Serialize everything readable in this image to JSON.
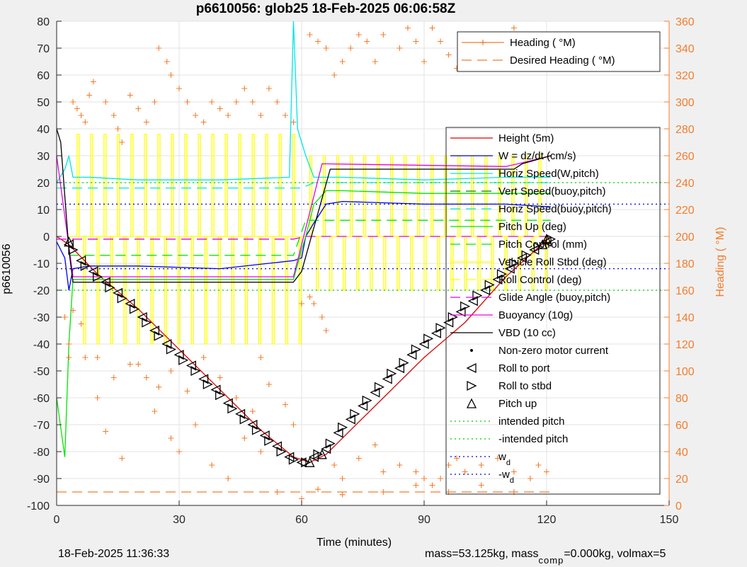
{
  "footer": {
    "date": "18-Feb-2025 11:36:33",
    "mass_prefix": "mass=53.125kg, mass",
    "mass_sub": "comp",
    "mass_suffix": "=0.000kg, volmax=5"
  },
  "chart_data": {
    "type": "line",
    "title": "p6610056: glob25 18-Feb-2025 06:06:58Z",
    "xlabel": "Time (minutes)",
    "ylabel": "p6610056",
    "y2label": "Heading ( °M)",
    "xlim": [
      0,
      150
    ],
    "ylim": [
      -100,
      80
    ],
    "y2lim": [
      0,
      360
    ],
    "xticks": [
      0,
      30,
      60,
      90,
      120,
      150
    ],
    "yticks": [
      -100,
      -90,
      -80,
      -70,
      -60,
      -50,
      -40,
      -30,
      -20,
      -10,
      0,
      10,
      20,
      30,
      40,
      50,
      60,
      70,
      80
    ],
    "y2ticks": [
      0,
      20,
      40,
      60,
      80,
      100,
      120,
      140,
      160,
      180,
      200,
      220,
      240,
      260,
      280,
      300,
      320,
      340,
      360
    ],
    "grid": true,
    "legend_heading": [
      {
        "label": "Heading ( °M)",
        "color": "#f47c2c",
        "style": "plus"
      },
      {
        "label": "Desired Heading ( °M)",
        "color": "#f47c2c",
        "style": "dash"
      }
    ],
    "legend_main": [
      {
        "label": "Height (5m)",
        "color": "#e00000",
        "style": "solid"
      },
      {
        "label": "W = dz/dt (cm/s)",
        "color": "#0000e6",
        "style": "solid"
      },
      {
        "label": "Horiz Speed(W,pitch)",
        "color": "#00e6e6",
        "style": "solid"
      },
      {
        "label": "Vert Speed(buoy,pitch)",
        "color": "#008000",
        "style": "dash"
      },
      {
        "label": "Horiz Speed(buoy,pitch)",
        "color": "#00e6e6",
        "style": "dash"
      },
      {
        "label": "Pitch Up (deg)",
        "color": "#00e600",
        "style": "solid"
      },
      {
        "label": "Pitch Control (mm)",
        "color": "#00e600",
        "style": "dash"
      },
      {
        "label": "Vehicle Roll Stbd (deg)",
        "color": "#ffff00",
        "style": "solid"
      },
      {
        "label": "Roll Control (deg)",
        "color": "#ffff00",
        "style": "dash"
      },
      {
        "label": "Glide Angle (buoy,pitch)",
        "color": "#e600e6",
        "style": "dash"
      },
      {
        "label": "Buoyancy (10g)",
        "color": "#e600e6",
        "style": "solid"
      },
      {
        "label": "VBD (10 cc)",
        "color": "#000000",
        "style": "solid"
      },
      {
        "label": "Non-zero motor current",
        "color": "#000000",
        "style": "dot"
      },
      {
        "label": "Roll to port",
        "color": "#000000",
        "style": "tri-left"
      },
      {
        "label": "Roll to stbd",
        "color": "#000000",
        "style": "tri-right"
      },
      {
        "label": "Pitch up",
        "color": "#000000",
        "style": "tri-up"
      },
      {
        "label": "intended pitch",
        "color": "#00d000",
        "style": "dotted"
      },
      {
        "label": "-intended pitch",
        "color": "#00d000",
        "style": "dotted"
      },
      {
        "label": "w",
        "sub": "d",
        "color": "#0000e6",
        "style": "dotted"
      },
      {
        "label": "-w",
        "sub": "d",
        "color": "#0000e6",
        "style": "dotted"
      }
    ],
    "series": [
      {
        "name": "Height (5m)",
        "color": "#e00000",
        "x": [
          0,
          3,
          10,
          20,
          30,
          40,
          50,
          58,
          62,
          66,
          72,
          80,
          90,
          100,
          110,
          121
        ],
        "y": [
          0,
          -3,
          -14,
          -27,
          -42,
          -57,
          -72,
          -82,
          -84,
          -81,
          -72,
          -60,
          -45,
          -32,
          -15,
          0
        ]
      },
      {
        "name": "W = dz/dt (cm/s)",
        "color": "#0000e6",
        "x": [
          0,
          2,
          3,
          4,
          8,
          20,
          40,
          58,
          60,
          61,
          63,
          66,
          70,
          90,
          110,
          121
        ],
        "y": [
          -2,
          -8,
          -20,
          -12,
          -11,
          -11,
          -12,
          -9,
          -8,
          0,
          5,
          12,
          13,
          12,
          12,
          11
        ]
      },
      {
        "name": "Horiz Speed(W,pitch)",
        "color": "#00e6e6",
        "x": [
          0,
          2,
          3,
          4,
          8,
          20,
          40,
          57,
          58,
          59,
          61,
          63,
          66,
          70,
          90,
          110,
          121
        ],
        "y": [
          20,
          25,
          30,
          22,
          22,
          21,
          21,
          22,
          80,
          40,
          30,
          22,
          22,
          22,
          21,
          22,
          22
        ]
      },
      {
        "name": "Horiz Speed(buoy,pitch)",
        "color": "#00e6e6",
        "x": [
          0,
          4,
          20,
          40,
          58,
          60,
          63,
          70,
          90,
          121
        ],
        "y": [
          18,
          18,
          18,
          18,
          18,
          18,
          20,
          20,
          20,
          20
        ]
      },
      {
        "name": "Pitch Up (deg)",
        "color": "#00e600",
        "x": [
          0,
          2,
          3,
          4,
          6,
          20,
          40,
          58,
          60,
          61,
          63,
          66,
          70,
          90,
          110,
          121
        ],
        "y": [
          -60,
          -82,
          -40,
          -16,
          -16,
          -16,
          -16,
          -16,
          -5,
          0,
          12,
          17,
          17,
          16,
          16,
          16
        ]
      },
      {
        "name": "Pitch Control (mm)",
        "color": "#00e600",
        "x": [
          3,
          58,
          61,
          121
        ],
        "y": [
          -7,
          -7,
          6,
          6
        ]
      },
      {
        "name": "Glide Angle (buoy,pitch)",
        "color": "#e600e6",
        "x": [
          0,
          20,
          40,
          58,
          61,
          90,
          121
        ],
        "y": [
          -1,
          -1,
          -1,
          -1,
          0,
          0,
          0
        ]
      },
      {
        "name": "Buoyancy (10g)",
        "color": "#e600e6",
        "x": [
          0,
          4,
          58,
          65,
          110,
          113,
          121
        ],
        "y": [
          30,
          -15,
          -15,
          27,
          26,
          27,
          30
        ]
      },
      {
        "name": "VBD (10 cc)",
        "color": "#000000",
        "x": [
          0,
          1,
          3,
          4,
          58,
          60,
          67,
          112,
          114,
          121
        ],
        "y": [
          40,
          35,
          -5,
          -17,
          -17,
          -13,
          25,
          25,
          27,
          30
        ]
      },
      {
        "name": "intended pitch",
        "color": "#00d000",
        "x": [
          0,
          150
        ],
        "y": [
          20,
          20
        ]
      },
      {
        "name": "-intended pitch",
        "color": "#00d000",
        "x": [
          0,
          150
        ],
        "y": [
          -20,
          -20
        ]
      },
      {
        "name": "w_d",
        "color": "#0000e6",
        "x": [
          0,
          150
        ],
        "y": [
          12,
          12
        ]
      },
      {
        "name": "-w_d",
        "color": "#0000e6",
        "x": [
          0,
          150
        ],
        "y": [
          -12,
          -12
        ]
      },
      {
        "name": "Desired Heading ( °M)",
        "color": "#f47c2c",
        "axis": "right",
        "x": [
          0,
          121
        ],
        "y": [
          10,
          10
        ]
      }
    ],
    "heading_points_deg": [
      [
        4,
        300
      ],
      [
        5,
        295
      ],
      [
        6,
        290
      ],
      [
        7,
        285
      ],
      [
        8,
        305
      ],
      [
        9,
        315
      ],
      [
        12,
        300
      ],
      [
        14,
        290
      ],
      [
        15,
        280
      ],
      [
        16,
        270
      ],
      [
        18,
        305
      ],
      [
        20,
        295
      ],
      [
        22,
        285
      ],
      [
        24,
        300
      ],
      [
        25,
        340
      ],
      [
        27,
        330
      ],
      [
        28,
        320
      ],
      [
        30,
        310
      ],
      [
        32,
        300
      ],
      [
        34,
        290
      ],
      [
        36,
        285
      ],
      [
        38,
        300
      ],
      [
        40,
        295
      ],
      [
        42,
        290
      ],
      [
        44,
        300
      ],
      [
        46,
        310
      ],
      [
        48,
        300
      ],
      [
        50,
        290
      ],
      [
        52,
        310
      ],
      [
        54,
        300
      ],
      [
        56,
        290
      ],
      [
        58,
        285
      ],
      [
        62,
        350
      ],
      [
        64,
        345
      ],
      [
        66,
        340
      ],
      [
        68,
        320
      ],
      [
        70,
        330
      ],
      [
        72,
        340
      ],
      [
        74,
        350
      ],
      [
        76,
        345
      ],
      [
        78,
        330
      ],
      [
        80,
        350
      ],
      [
        84,
        340
      ],
      [
        86,
        355
      ],
      [
        88,
        345
      ],
      [
        90,
        330
      ],
      [
        92,
        355
      ],
      [
        94,
        345
      ],
      [
        96,
        335
      ],
      [
        98,
        325
      ],
      [
        100,
        350
      ],
      [
        102,
        345
      ],
      [
        104,
        340
      ],
      [
        106,
        330
      ],
      [
        108,
        345
      ],
      [
        110,
        340
      ],
      [
        112,
        355
      ],
      [
        114,
        350
      ],
      [
        116,
        345
      ],
      [
        118,
        340
      ],
      [
        4,
        145
      ],
      [
        6,
        135
      ],
      [
        10,
        110
      ],
      [
        14,
        95
      ],
      [
        18,
        105
      ],
      [
        22,
        95
      ],
      [
        25,
        88
      ],
      [
        28,
        100
      ],
      [
        32,
        85
      ],
      [
        36,
        110
      ],
      [
        40,
        95
      ],
      [
        44,
        80
      ],
      [
        48,
        70
      ],
      [
        50,
        110
      ],
      [
        52,
        90
      ],
      [
        56,
        75
      ],
      [
        58,
        60
      ],
      [
        60,
        150
      ],
      [
        62,
        155
      ],
      [
        63,
        150
      ],
      [
        65,
        140
      ],
      [
        66,
        130
      ],
      [
        68,
        30
      ],
      [
        70,
        20
      ],
      [
        74,
        35
      ],
      [
        78,
        45
      ],
      [
        80,
        25
      ],
      [
        84,
        30
      ],
      [
        88,
        25
      ],
      [
        90,
        20
      ],
      [
        92,
        15
      ],
      [
        94,
        20
      ],
      [
        96,
        30
      ],
      [
        98,
        35
      ],
      [
        100,
        25
      ],
      [
        104,
        30
      ],
      [
        108,
        35
      ],
      [
        112,
        25
      ],
      [
        116,
        20
      ],
      [
        118,
        30
      ],
      [
        120,
        25
      ],
      [
        2,
        140
      ],
      [
        3,
        120
      ],
      [
        3,
        110
      ],
      [
        7,
        110
      ],
      [
        10,
        80
      ],
      [
        12,
        55
      ],
      [
        16,
        35
      ],
      [
        20,
        105
      ],
      [
        24,
        70
      ],
      [
        28,
        50
      ],
      [
        30,
        40
      ],
      [
        34,
        60
      ],
      [
        38,
        30
      ],
      [
        42,
        20
      ],
      [
        46,
        50
      ],
      [
        50,
        40
      ],
      [
        54,
        10
      ],
      [
        60,
        5
      ],
      [
        64,
        12
      ],
      [
        70,
        8
      ],
      [
        80,
        10
      ],
      [
        88,
        15
      ],
      [
        96,
        10
      ],
      [
        104,
        15
      ],
      [
        112,
        10
      ]
    ],
    "roll_port_points": [
      [
        3,
        -3
      ],
      [
        6,
        -9
      ],
      [
        9,
        -13
      ],
      [
        12,
        -17
      ],
      [
        15,
        -21
      ],
      [
        18,
        -25
      ],
      [
        21,
        -30
      ],
      [
        24,
        -35
      ],
      [
        27,
        -40
      ],
      [
        30,
        -44
      ],
      [
        33,
        -48
      ],
      [
        36,
        -53
      ],
      [
        39,
        -57
      ],
      [
        42,
        -62
      ],
      [
        45,
        -66
      ],
      [
        48,
        -70
      ],
      [
        51,
        -74
      ],
      [
        54,
        -78
      ],
      [
        57,
        -82
      ],
      [
        60,
        -84
      ],
      [
        63,
        -82
      ],
      [
        66,
        -79
      ],
      [
        69,
        -73
      ],
      [
        72,
        -68
      ],
      [
        75,
        -63
      ],
      [
        78,
        -58
      ],
      [
        81,
        -53
      ],
      [
        84,
        -49
      ],
      [
        87,
        -44
      ],
      [
        90,
        -40
      ],
      [
        93,
        -36
      ],
      [
        96,
        -32
      ],
      [
        99,
        -28
      ],
      [
        102,
        -24
      ],
      [
        105,
        -20
      ],
      [
        108,
        -16
      ],
      [
        111,
        -12
      ],
      [
        114,
        -8
      ],
      [
        117,
        -5
      ],
      [
        120,
        -2
      ]
    ],
    "roll_stbd_points": [
      [
        4,
        -5
      ],
      [
        7,
        -11
      ],
      [
        10,
        -15
      ],
      [
        13,
        -19
      ],
      [
        16,
        -23
      ],
      [
        19,
        -27
      ],
      [
        22,
        -32
      ],
      [
        25,
        -37
      ],
      [
        28,
        -42
      ],
      [
        31,
        -46
      ],
      [
        34,
        -50
      ],
      [
        37,
        -55
      ],
      [
        40,
        -59
      ],
      [
        43,
        -64
      ],
      [
        46,
        -68
      ],
      [
        49,
        -72
      ],
      [
        52,
        -76
      ],
      [
        55,
        -80
      ],
      [
        58,
        -83
      ],
      [
        61,
        -84
      ],
      [
        64,
        -81
      ],
      [
        67,
        -77
      ],
      [
        70,
        -71
      ],
      [
        73,
        -66
      ],
      [
        76,
        -61
      ],
      [
        79,
        -56
      ],
      [
        82,
        -51
      ],
      [
        85,
        -47
      ],
      [
        88,
        -42
      ],
      [
        91,
        -38
      ],
      [
        94,
        -34
      ],
      [
        97,
        -30
      ],
      [
        100,
        -26
      ],
      [
        103,
        -22
      ],
      [
        106,
        -18
      ],
      [
        109,
        -14
      ],
      [
        112,
        -10
      ],
      [
        115,
        -7
      ],
      [
        118,
        -4
      ],
      [
        121,
        -1
      ]
    ],
    "pitch_up_points": [
      [
        3,
        -2
      ],
      [
        62,
        -84
      ],
      [
        65,
        -81
      ],
      [
        119,
        -3
      ],
      [
        120,
        -1
      ]
    ]
  }
}
